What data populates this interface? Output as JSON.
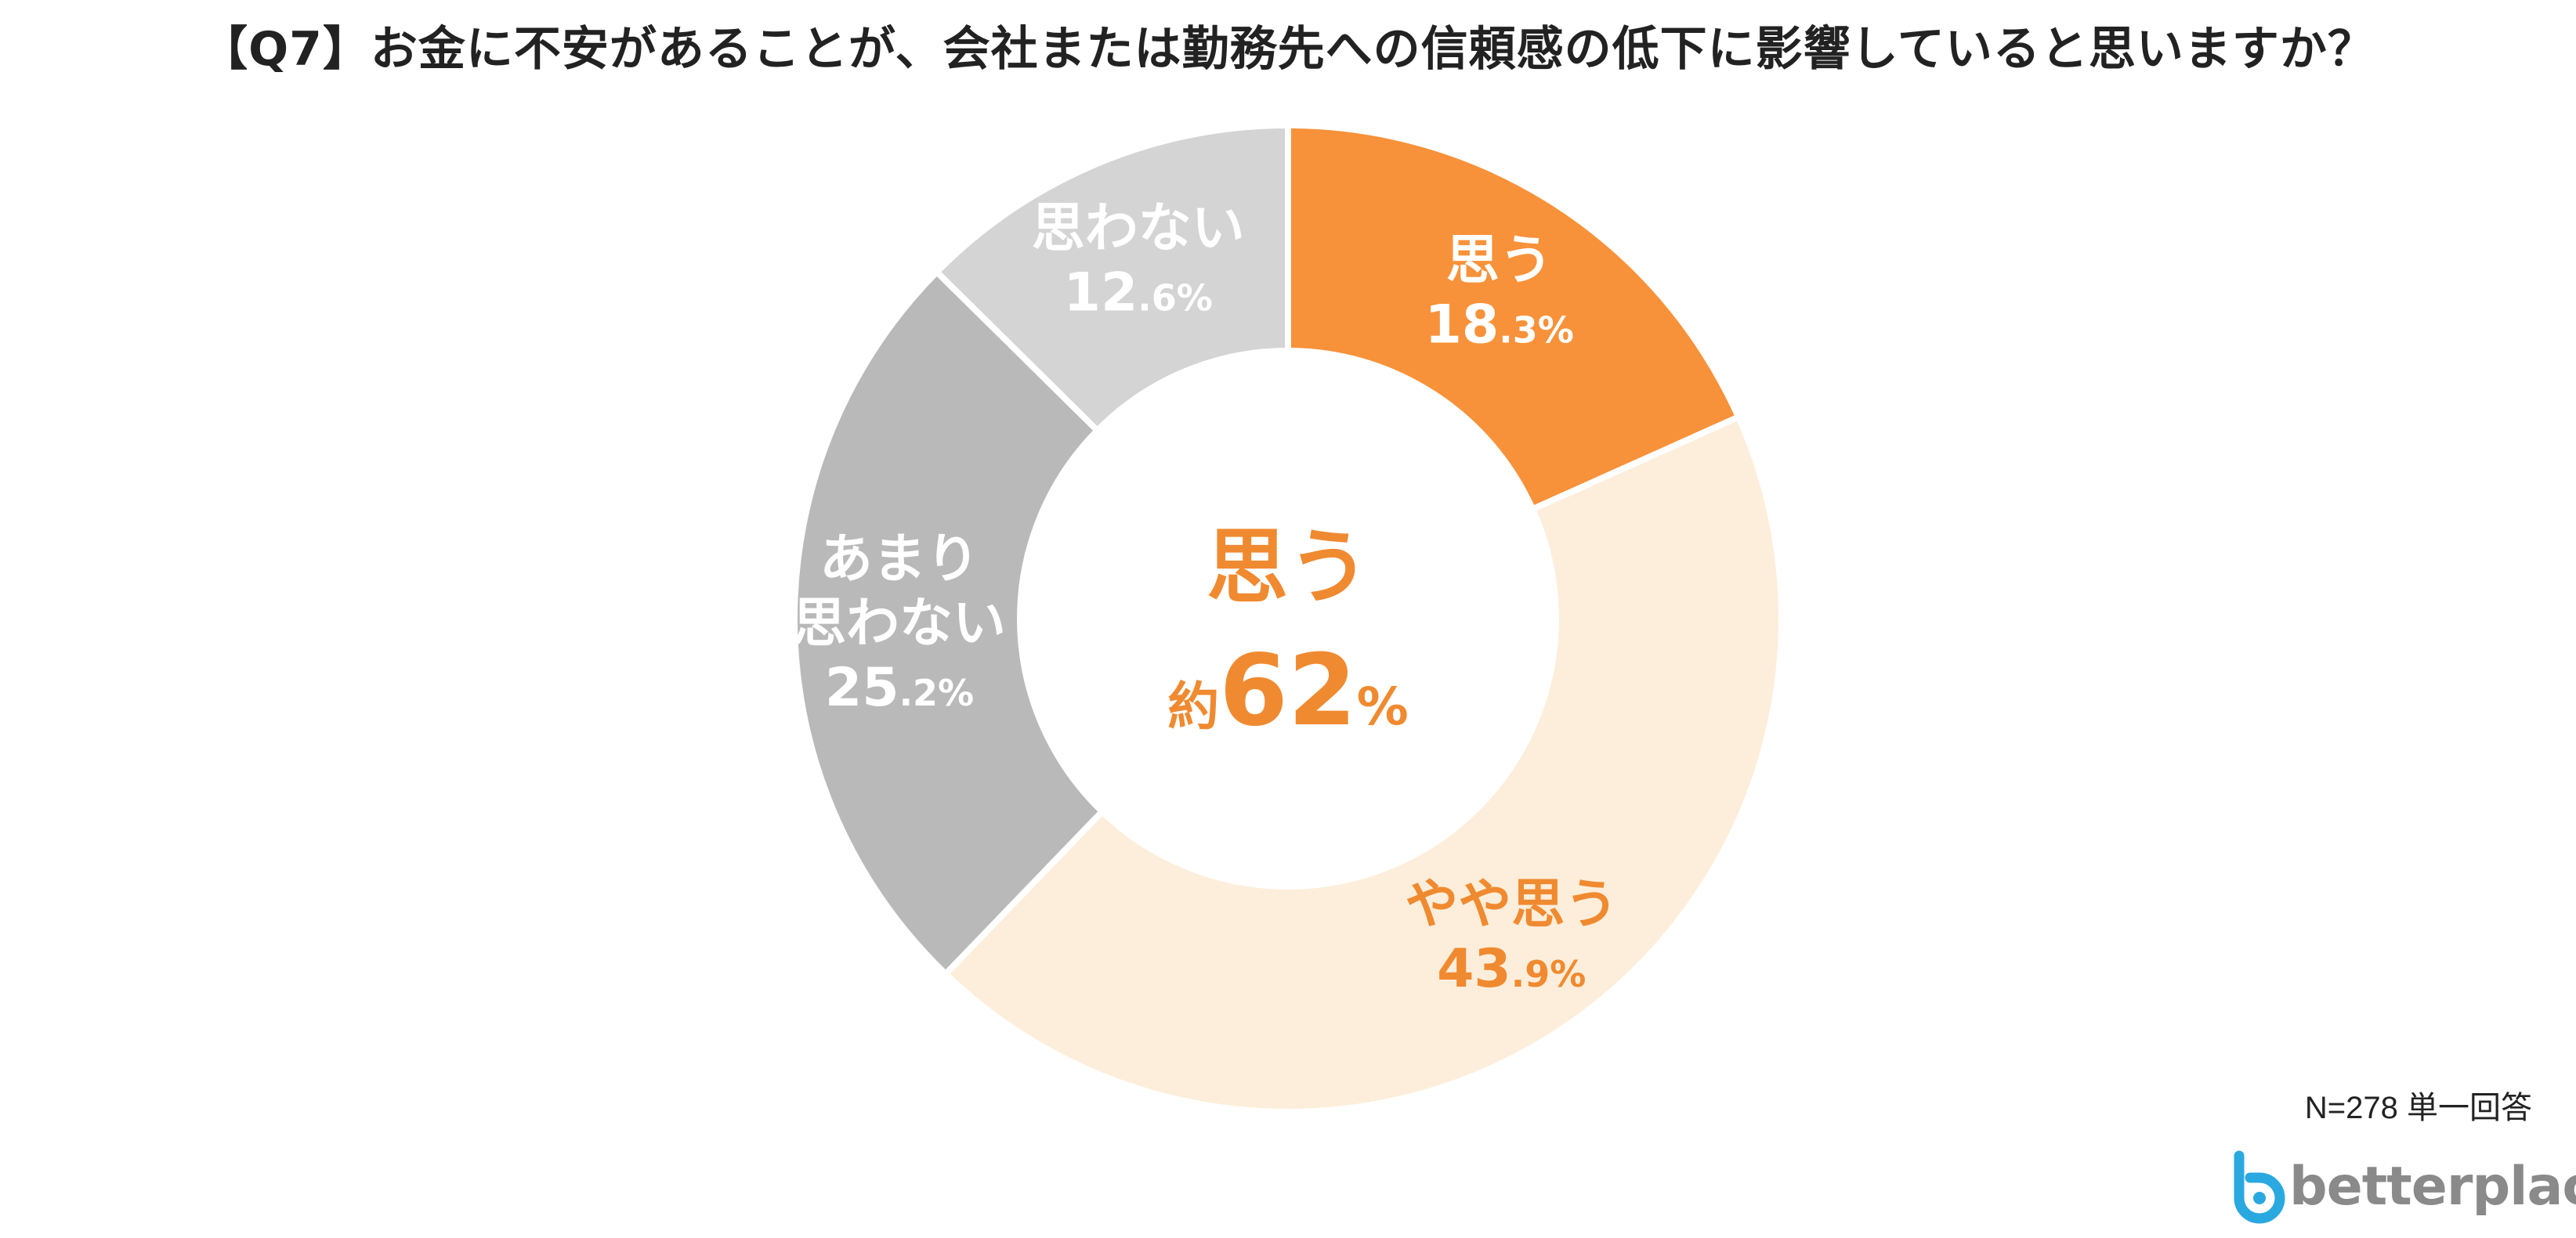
{
  "title": "【Q7】お金に不安があることが、会社または勤務先への信頼感の低下に影響していると思いますか？",
  "chart_data": {
    "type": "pie",
    "variant": "donut",
    "title": "【Q7】お金に不安があることが、会社または勤務先への信頼感の低下に影響していると思いますか？",
    "unit": "%",
    "start": "12 o'clock, clockwise",
    "slices": [
      {
        "label": "思う",
        "value": 18.3,
        "int": "18",
        "dec": ".3%",
        "color": "#f7923a",
        "label_color": "#ffffff"
      },
      {
        "label": "やや思う",
        "value": 43.9,
        "int": "43",
        "dec": ".9%",
        "color": "#fdeedb",
        "label_color": "#f08a30"
      },
      {
        "label": "あまり\n思わない",
        "value": 25.2,
        "int": "25",
        "dec": ".2%",
        "color": "#b9b9b9",
        "label_color": "#ffffff"
      },
      {
        "label": "思わない",
        "value": 12.6,
        "int": "12",
        "dec": ".6%",
        "color": "#d4d4d4",
        "label_color": "#ffffff"
      }
    ],
    "center": {
      "label": "思う",
      "prefix": "約",
      "value": "62",
      "suffix": "%",
      "color": "#f08a30"
    }
  },
  "footer": {
    "note": "N=278 単一回答",
    "logo_text": "betterplace",
    "logo_color": "#2aa8e0"
  }
}
